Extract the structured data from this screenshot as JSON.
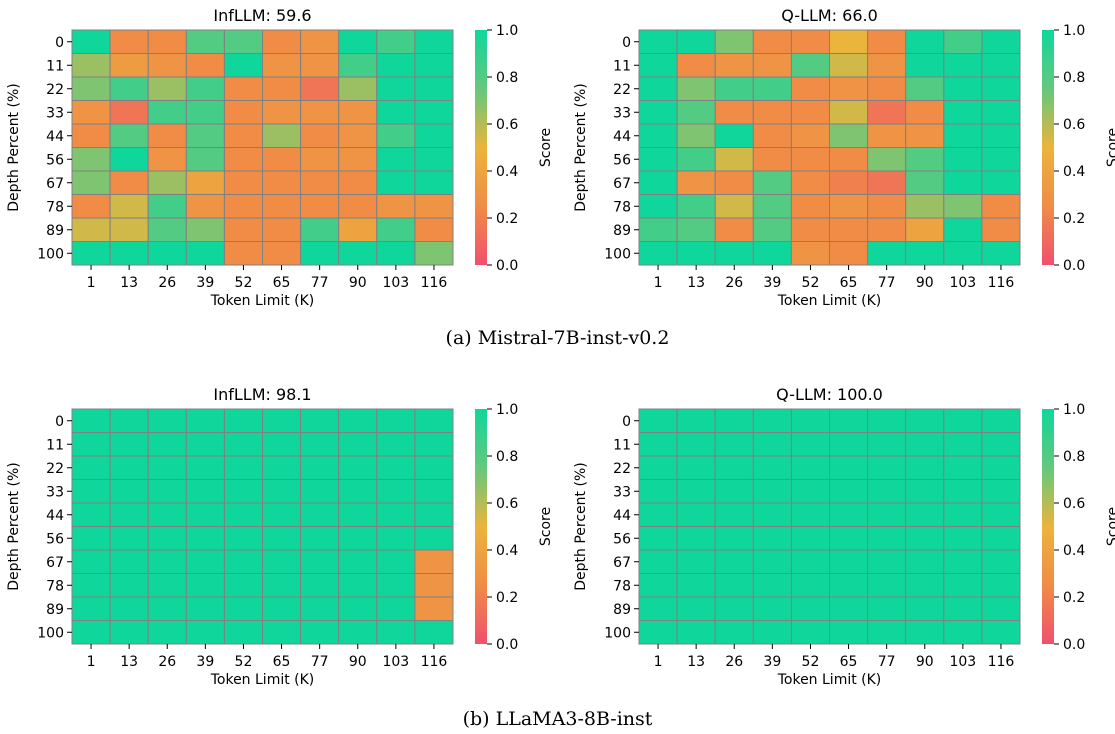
{
  "figure": {
    "captions": [
      "(a) Mistral-7B-inst-v0.2",
      "(b) LLaMA3-8B-inst"
    ]
  },
  "colors": {
    "colormap": [
      "#f0506e",
      "#f08c46",
      "#ebb43c",
      "#64c87d",
      "#0fd79b"
    ],
    "cell_edge": "#808080"
  },
  "chart_data": [
    {
      "type": "heatmap",
      "title": "InfLLM: 59.6",
      "xlabel": "Token Limit (K)",
      "ylabel": "Depth Percent (%)",
      "colorbar_label": "Score",
      "x": [
        "1",
        "13",
        "26",
        "39",
        "52",
        "65",
        "77",
        "90",
        "103",
        "116"
      ],
      "y": [
        "0",
        "11",
        "22",
        "33",
        "44",
        "56",
        "67",
        "78",
        "89",
        "100"
      ],
      "zlim": [
        0,
        1
      ],
      "colorbar_ticks": [
        "0.0",
        "0.2",
        "0.4",
        "0.6",
        "0.8",
        "1.0"
      ],
      "values": [
        [
          1.0,
          0.25,
          0.25,
          0.8,
          0.8,
          0.25,
          0.3,
          1.0,
          0.85,
          1.0
        ],
        [
          0.65,
          0.35,
          0.3,
          0.25,
          1.0,
          0.3,
          0.3,
          0.85,
          1.0,
          1.0
        ],
        [
          0.7,
          0.85,
          0.65,
          0.85,
          0.25,
          0.25,
          0.15,
          0.65,
          1.0,
          1.0
        ],
        [
          0.3,
          0.15,
          0.85,
          0.85,
          0.25,
          0.3,
          0.3,
          0.3,
          1.0,
          1.0
        ],
        [
          0.25,
          0.8,
          0.25,
          0.8,
          0.25,
          0.65,
          0.25,
          0.3,
          0.85,
          1.0
        ],
        [
          0.7,
          1.0,
          0.3,
          0.8,
          0.25,
          0.25,
          0.3,
          0.3,
          1.0,
          1.0
        ],
        [
          0.7,
          0.25,
          0.65,
          0.4,
          0.25,
          0.25,
          0.25,
          0.25,
          1.0,
          1.0
        ],
        [
          0.25,
          0.55,
          0.85,
          0.3,
          0.25,
          0.25,
          0.25,
          0.25,
          0.3,
          0.3
        ],
        [
          0.55,
          0.55,
          0.8,
          0.7,
          0.25,
          0.25,
          0.85,
          0.4,
          0.85,
          0.25
        ],
        [
          1.0,
          1.0,
          1.0,
          1.0,
          0.25,
          0.25,
          1.0,
          1.0,
          1.0,
          0.7
        ]
      ]
    },
    {
      "type": "heatmap",
      "title": "Q-LLM: 66.0",
      "xlabel": "Token Limit (K)",
      "ylabel": "Depth Percent (%)",
      "colorbar_label": "Score",
      "x": [
        "1",
        "13",
        "26",
        "39",
        "52",
        "65",
        "77",
        "90",
        "103",
        "116"
      ],
      "y": [
        "0",
        "11",
        "22",
        "33",
        "44",
        "56",
        "67",
        "78",
        "89",
        "100"
      ],
      "zlim": [
        0,
        1
      ],
      "colorbar_ticks": [
        "0.0",
        "0.2",
        "0.4",
        "0.6",
        "0.8",
        "1.0"
      ],
      "values": [
        [
          1.0,
          1.0,
          0.7,
          0.25,
          0.25,
          0.5,
          0.25,
          1.0,
          0.85,
          1.0
        ],
        [
          1.0,
          0.25,
          0.3,
          0.3,
          0.8,
          0.55,
          0.3,
          1.0,
          1.0,
          1.0
        ],
        [
          1.0,
          0.7,
          0.85,
          0.85,
          0.25,
          0.3,
          0.25,
          0.8,
          1.0,
          1.0
        ],
        [
          1.0,
          0.8,
          0.25,
          0.25,
          0.25,
          0.55,
          0.15,
          0.25,
          1.0,
          1.0
        ],
        [
          1.0,
          0.7,
          1.0,
          0.25,
          0.3,
          0.7,
          0.3,
          0.3,
          1.0,
          1.0
        ],
        [
          1.0,
          0.85,
          0.55,
          0.25,
          0.25,
          0.25,
          0.7,
          0.8,
          1.0,
          1.0
        ],
        [
          1.0,
          0.3,
          0.25,
          0.8,
          0.25,
          0.2,
          0.15,
          0.8,
          1.0,
          1.0
        ],
        [
          1.0,
          0.85,
          0.55,
          0.8,
          0.25,
          0.3,
          0.25,
          0.65,
          0.7,
          0.25
        ],
        [
          0.85,
          0.8,
          0.25,
          0.8,
          0.25,
          0.25,
          0.25,
          0.4,
          1.0,
          0.25
        ],
        [
          1.0,
          1.0,
          1.0,
          1.0,
          0.3,
          0.25,
          1.0,
          1.0,
          1.0,
          1.0
        ]
      ]
    },
    {
      "type": "heatmap",
      "title": "InfLLM: 98.1",
      "xlabel": "Token Limit (K)",
      "ylabel": "Depth Percent (%)",
      "colorbar_label": "Score",
      "x": [
        "1",
        "13",
        "26",
        "39",
        "52",
        "65",
        "77",
        "90",
        "103",
        "116"
      ],
      "y": [
        "0",
        "11",
        "22",
        "33",
        "44",
        "56",
        "67",
        "78",
        "89",
        "100"
      ],
      "zlim": [
        0,
        1
      ],
      "colorbar_ticks": [
        "0.0",
        "0.2",
        "0.4",
        "0.6",
        "0.8",
        "1.0"
      ],
      "values": [
        [
          1,
          1,
          1,
          1,
          1,
          1,
          1,
          1,
          1,
          1
        ],
        [
          1,
          1,
          1,
          1,
          1,
          1,
          1,
          1,
          1,
          1
        ],
        [
          1,
          1,
          1,
          1,
          1,
          1,
          1,
          1,
          1,
          1
        ],
        [
          1,
          1,
          1,
          1,
          1,
          1,
          1,
          1,
          1,
          1
        ],
        [
          1,
          1,
          1,
          1,
          1,
          1,
          1,
          1,
          1,
          1
        ],
        [
          1,
          1,
          1,
          1,
          1,
          1,
          1,
          1,
          1,
          1
        ],
        [
          1,
          1,
          1,
          1,
          1,
          1,
          1,
          1,
          1,
          0.3
        ],
        [
          1,
          1,
          1,
          1,
          1,
          1,
          1,
          1,
          1,
          0.3
        ],
        [
          1,
          1,
          1,
          1,
          1,
          1,
          1,
          1,
          1,
          0.3
        ],
        [
          1,
          1,
          1,
          1,
          1,
          1,
          1,
          1,
          1,
          1
        ]
      ]
    },
    {
      "type": "heatmap",
      "title": "Q-LLM: 100.0",
      "xlabel": "Token Limit (K)",
      "ylabel": "Depth Percent (%)",
      "colorbar_label": "Score",
      "x": [
        "1",
        "13",
        "26",
        "39",
        "52",
        "65",
        "77",
        "90",
        "103",
        "116"
      ],
      "y": [
        "0",
        "11",
        "22",
        "33",
        "44",
        "56",
        "67",
        "78",
        "89",
        "100"
      ],
      "zlim": [
        0,
        1
      ],
      "colorbar_ticks": [
        "0.0",
        "0.2",
        "0.4",
        "0.6",
        "0.8",
        "1.0"
      ],
      "values": [
        [
          1,
          1,
          1,
          1,
          1,
          1,
          1,
          1,
          1,
          1
        ],
        [
          1,
          1,
          1,
          1,
          1,
          1,
          1,
          1,
          1,
          1
        ],
        [
          1,
          1,
          1,
          1,
          1,
          1,
          1,
          1,
          1,
          1
        ],
        [
          1,
          1,
          1,
          1,
          1,
          1,
          1,
          1,
          1,
          1
        ],
        [
          1,
          1,
          1,
          1,
          1,
          1,
          1,
          1,
          1,
          1
        ],
        [
          1,
          1,
          1,
          1,
          1,
          1,
          1,
          1,
          1,
          1
        ],
        [
          1,
          1,
          1,
          1,
          1,
          1,
          1,
          1,
          1,
          1
        ],
        [
          1,
          1,
          1,
          1,
          1,
          1,
          1,
          1,
          1,
          1
        ],
        [
          1,
          1,
          1,
          1,
          1,
          1,
          1,
          1,
          1,
          1
        ],
        [
          1,
          1,
          1,
          1,
          1,
          1,
          1,
          1,
          1,
          1
        ]
      ]
    }
  ]
}
